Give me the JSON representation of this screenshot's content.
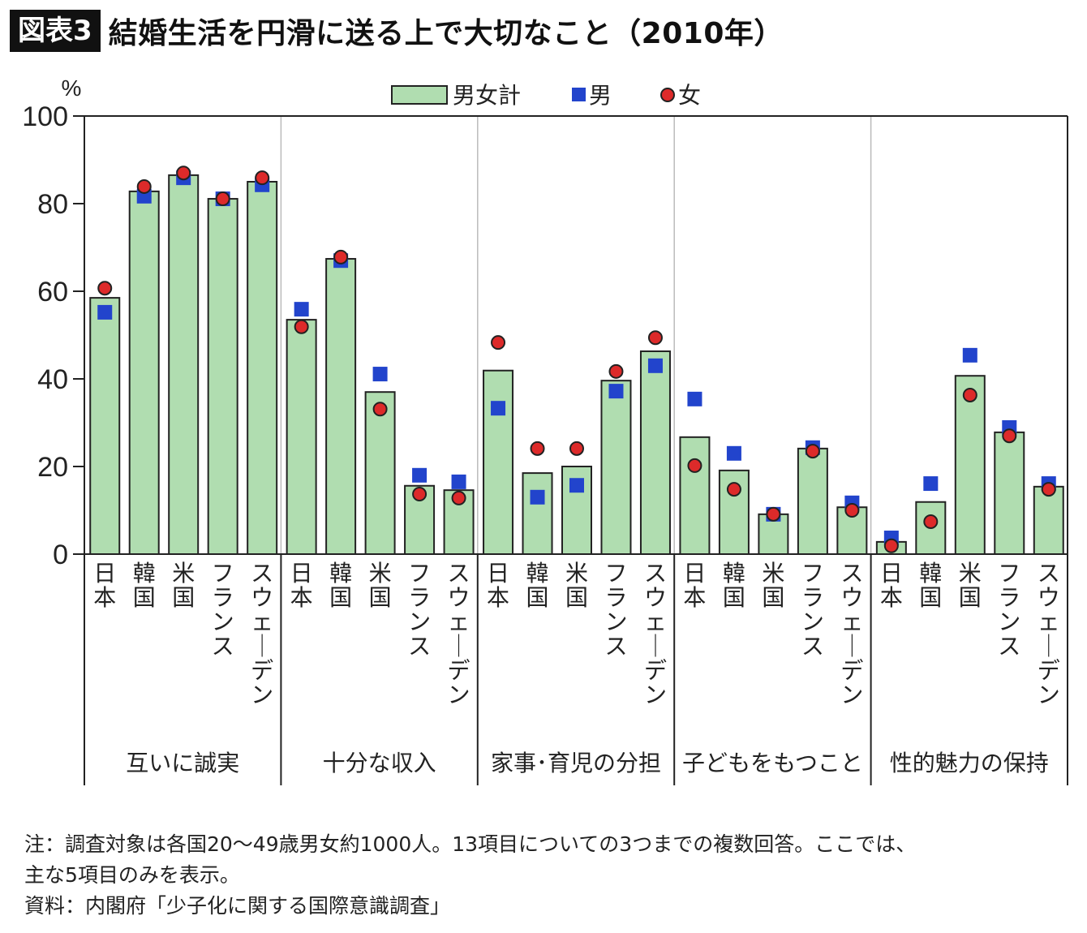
{
  "header": {
    "badge": "図表3",
    "title": "結婚生活を円滑に送る上で大切なこと（2010年）"
  },
  "notes": [
    "注：調査対象は各国20〜49歳男女約1000人。13項目についての3つまでの複数回答。ここでは、",
    "主な5項目のみを表示。",
    "資料：内閣府「少子化に関する国際意識調査」"
  ],
  "colors": {
    "bar_fill": "#b0ddb0",
    "bar_stroke": "#222222",
    "male": "#2244cc",
    "female": "#dd2a2a",
    "group_divider": "#bbbbbb"
  },
  "chart_data": {
    "type": "bar",
    "title": "結婚生活を円滑に送る上で大切なこと（2010年）",
    "ylabel": "%",
    "xlabel": "",
    "ylim": [
      0,
      100
    ],
    "yticks": [
      0,
      20,
      40,
      60,
      80,
      100
    ],
    "legend": {
      "position": "top-center",
      "entries": [
        "男女計",
        "男",
        "女"
      ]
    },
    "grid": false,
    "countries": [
      "日本",
      "韓国",
      "米国",
      "フランス",
      "スウェーデン"
    ],
    "groups": [
      {
        "name": "互いに誠実",
        "total": [
          58.5,
          82.8,
          86.5,
          81.1,
          85.0
        ],
        "male": [
          55.2,
          81.7,
          85.9,
          81.1,
          84.3
        ],
        "female": [
          60.7,
          83.9,
          87.0,
          81.1,
          85.9
        ]
      },
      {
        "name": "十分な収入",
        "total": [
          53.5,
          67.4,
          37.0,
          15.6,
          14.6
        ],
        "male": [
          55.9,
          67.0,
          41.1,
          18.0,
          16.5
        ],
        "female": [
          51.9,
          67.8,
          33.1,
          13.7,
          12.8
        ]
      },
      {
        "name": "家事･育児の分担",
        "total": [
          41.9,
          18.5,
          20.0,
          39.6,
          46.3
        ],
        "male": [
          33.3,
          13.0,
          15.7,
          37.2,
          43.0
        ],
        "female": [
          48.3,
          24.1,
          24.1,
          41.7,
          49.4
        ]
      },
      {
        "name": "子どもをもつこと",
        "total": [
          26.7,
          19.1,
          9.1,
          24.1,
          10.7
        ],
        "male": [
          35.4,
          23.0,
          9.1,
          24.3,
          11.7
        ],
        "female": [
          20.2,
          14.8,
          9.1,
          23.5,
          10.0
        ]
      },
      {
        "name": "性的魅力の保持",
        "total": [
          2.8,
          11.9,
          40.7,
          27.8,
          15.4
        ],
        "male": [
          3.7,
          16.1,
          45.4,
          28.9,
          16.1
        ],
        "female": [
          1.9,
          7.4,
          36.3,
          27.0,
          14.8
        ]
      }
    ]
  }
}
